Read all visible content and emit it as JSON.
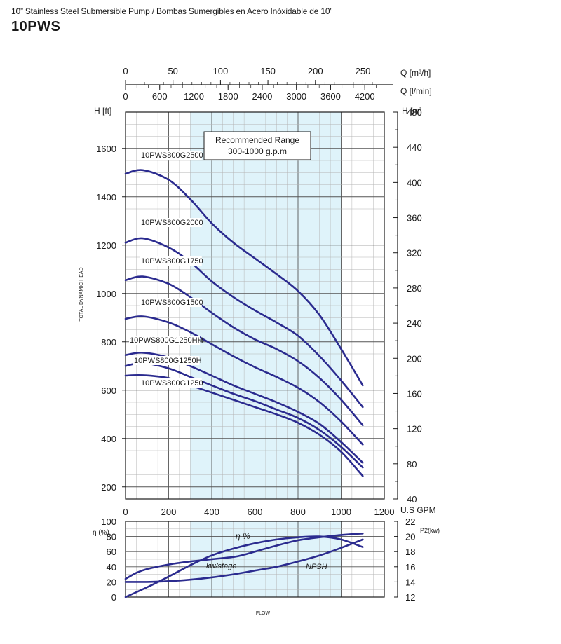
{
  "header": {
    "subtitle": "10” Stainless Steel Submersible Pump / Bombas Sumergibles en Acero Inóxidable de 10”",
    "model": "10PWS"
  },
  "colors": {
    "curve": "#2b2b8f",
    "range": "#dff3fa",
    "grid": "#9a9a9a"
  },
  "labels": {
    "range_title": "Recommended Range",
    "range_sub": "300-1000 g.p.m",
    "left_axis": "H [ft]",
    "right_axis": "H [m]",
    "top_axis_1": "Q [m³/h]",
    "top_axis_2": "Q [l/min]",
    "bottom_axis": "U.S GPM",
    "vertical_axis": "TOTAL DYNAMIC HEAD",
    "eff_axis": "η (%)",
    "power_axis": "P2(kw)",
    "flow": "FLOW",
    "eff_curve": "η %",
    "kw_curve": "kw/stage",
    "npsh_curve": "NPSH"
  },
  "chart_data": [
    {
      "type": "line",
      "title": "",
      "xlabel": "U.S GPM",
      "ylabel": "H [ft]",
      "y2label": "H [m]",
      "xlim": [
        0,
        1200
      ],
      "ylim": [
        150,
        1750
      ],
      "y2lim": [
        40,
        480
      ],
      "grid": true,
      "recommended_range": [
        300,
        1000
      ],
      "x_ticks": [
        0,
        200,
        400,
        600,
        800,
        1000,
        1200
      ],
      "y_ticks": [
        200,
        400,
        600,
        800,
        1000,
        1200,
        1400,
        1600
      ],
      "y2_ticks": [
        40,
        80,
        120,
        160,
        200,
        240,
        280,
        320,
        360,
        400,
        440,
        480
      ],
      "top_ticks_m3h": [
        0,
        50,
        100,
        150,
        200,
        250
      ],
      "top_ticks_lmin": [
        0,
        600,
        1200,
        1800,
        2400,
        3000,
        3600,
        4200
      ],
      "series": [
        {
          "name": "10PWS800G2500",
          "x": [
            0,
            80,
            200,
            300,
            400,
            500,
            600,
            700,
            800,
            900,
            1000,
            1100
          ],
          "y": [
            1495,
            1510,
            1470,
            1390,
            1290,
            1210,
            1145,
            1080,
            1010,
            910,
            770,
            620
          ]
        },
        {
          "name": "10PWS800G2000",
          "x": [
            0,
            80,
            200,
            300,
            400,
            500,
            600,
            700,
            800,
            900,
            1000,
            1100
          ],
          "y": [
            1210,
            1228,
            1190,
            1130,
            1050,
            985,
            930,
            880,
            825,
            740,
            640,
            530
          ]
        },
        {
          "name": "10PWS800G1750",
          "x": [
            0,
            80,
            200,
            300,
            400,
            500,
            600,
            700,
            800,
            900,
            1000,
            1100
          ],
          "y": [
            1055,
            1070,
            1040,
            985,
            920,
            860,
            810,
            770,
            720,
            650,
            560,
            455
          ]
        },
        {
          "name": "10PWS800G1500",
          "x": [
            0,
            80,
            200,
            300,
            400,
            500,
            600,
            700,
            800,
            900,
            1000,
            1100
          ],
          "y": [
            895,
            905,
            880,
            840,
            790,
            740,
            695,
            655,
            610,
            550,
            470,
            375
          ]
        },
        {
          "name": "10PWS800G1250HH",
          "x": [
            0,
            80,
            200,
            300,
            400,
            500,
            600,
            700,
            800,
            900,
            1000,
            1100
          ],
          "y": [
            745,
            755,
            735,
            700,
            660,
            620,
            585,
            550,
            510,
            460,
            385,
            300
          ]
        },
        {
          "name": "10PWS800G1250H",
          "x": [
            0,
            80,
            200,
            300,
            400,
            500,
            600,
            700,
            800,
            900,
            1000,
            1100
          ],
          "y": [
            700,
            712,
            690,
            655,
            620,
            585,
            555,
            520,
            485,
            435,
            365,
            280
          ]
        },
        {
          "name": "10PWS800G1250",
          "x": [
            0,
            80,
            200,
            300,
            400,
            500,
            600,
            700,
            800,
            900,
            1000,
            1100
          ],
          "y": [
            660,
            662,
            650,
            620,
            590,
            560,
            530,
            500,
            465,
            415,
            345,
            245
          ]
        }
      ]
    },
    {
      "type": "line",
      "title": "",
      "xlabel": "FLOW",
      "ylabel": "η (%)",
      "y2label": "P2(kw)",
      "xlim": [
        0,
        1200
      ],
      "ylim": [
        0,
        100
      ],
      "y2lim": [
        12,
        22
      ],
      "grid": true,
      "y_ticks": [
        0,
        20,
        40,
        60,
        80,
        100
      ],
      "y2_ticks": [
        12,
        14,
        16,
        18,
        20,
        22
      ],
      "series": [
        {
          "name": "η %",
          "x": [
            0,
            100,
            200,
            300,
            400,
            500,
            600,
            700,
            800,
            900,
            1000,
            1100
          ],
          "y": [
            0,
            13,
            27,
            42,
            55,
            64,
            71,
            76,
            79,
            80,
            76,
            66
          ]
        },
        {
          "name": "kw/stage",
          "x": [
            0,
            50,
            100,
            200,
            300,
            400,
            500,
            550,
            600,
            700,
            800,
            900,
            1000,
            1100
          ],
          "y": [
            24,
            32,
            37,
            43,
            47,
            50,
            53,
            56,
            60,
            68,
            75,
            79,
            82,
            84
          ]
        },
        {
          "name": "NPSH",
          "x": [
            0,
            100,
            200,
            300,
            400,
            500,
            600,
            700,
            800,
            900,
            1000,
            1100
          ],
          "y": [
            20,
            20,
            21,
            23,
            26,
            30,
            35,
            40,
            47,
            55,
            65,
            76
          ]
        }
      ]
    }
  ]
}
